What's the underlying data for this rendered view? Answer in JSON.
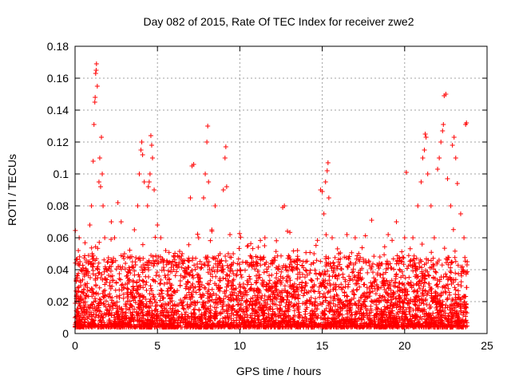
{
  "chart_data": {
    "type": "scatter",
    "title": "Day 082 of 2015, Rate Of TEC Index for receiver zwe2",
    "xlabel": "GPS time / hours",
    "ylabel": "ROTI / TECUs",
    "xlim": [
      0,
      25
    ],
    "ylim": [
      0,
      0.18
    ],
    "x_ticks": [
      0,
      5,
      10,
      15,
      20,
      25
    ],
    "x_tick_labels": [
      "0",
      "5",
      "10",
      "15",
      "20",
      "25"
    ],
    "y_ticks": [
      0,
      0.02,
      0.04,
      0.06,
      0.08,
      0.1,
      0.12,
      0.14,
      0.16,
      0.18
    ],
    "y_tick_labels": [
      "0",
      "0.02",
      "0.04",
      "0.06",
      "0.08",
      "0.1",
      "0.12",
      "0.14",
      "0.16",
      "0.18"
    ],
    "grid": true,
    "marker": "+",
    "color": "#ff0000",
    "series": [
      {
        "name": "ROTI",
        "points": [
          [
            0.0,
            0.01
          ],
          [
            0.1,
            0.02
          ],
          [
            0.15,
            0.035
          ],
          [
            0.2,
            0.052
          ],
          [
            0.25,
            0.06
          ],
          [
            0.3,
            0.045
          ],
          [
            0.35,
            0.03
          ],
          [
            0.5,
            0.015
          ],
          [
            0.7,
            0.038
          ],
          [
            0.9,
            0.068
          ],
          [
            1.0,
            0.08
          ],
          [
            1.1,
            0.108
          ],
          [
            1.15,
            0.131
          ],
          [
            1.2,
            0.145
          ],
          [
            1.22,
            0.148
          ],
          [
            1.25,
            0.163
          ],
          [
            1.28,
            0.165
          ],
          [
            1.3,
            0.169
          ],
          [
            1.35,
            0.155
          ],
          [
            1.45,
            0.095
          ],
          [
            1.5,
            0.11
          ],
          [
            1.55,
            0.092
          ],
          [
            1.6,
            0.123
          ],
          [
            1.65,
            0.1
          ],
          [
            1.7,
            0.08
          ],
          [
            1.8,
            0.06
          ],
          [
            2.0,
            0.045
          ],
          [
            2.2,
            0.07
          ],
          [
            2.4,
            0.06
          ],
          [
            2.6,
            0.082
          ],
          [
            2.8,
            0.07
          ],
          [
            3.0,
            0.05
          ],
          [
            3.3,
            0.04
          ],
          [
            3.6,
            0.065
          ],
          [
            3.8,
            0.08
          ],
          [
            3.9,
            0.1
          ],
          [
            4.0,
            0.115
          ],
          [
            4.05,
            0.12
          ],
          [
            4.1,
            0.112
          ],
          [
            4.2,
            0.095
          ],
          [
            4.4,
            0.08
          ],
          [
            4.45,
            0.092
          ],
          [
            4.5,
            0.095
          ],
          [
            4.55,
            0.1
          ],
          [
            4.6,
            0.124
          ],
          [
            4.65,
            0.118
          ],
          [
            4.7,
            0.11
          ],
          [
            4.8,
            0.09
          ],
          [
            5.0,
            0.068
          ],
          [
            5.2,
            0.06
          ],
          [
            5.5,
            0.052
          ],
          [
            6.0,
            0.048
          ],
          [
            6.5,
            0.05
          ],
          [
            7.0,
            0.085
          ],
          [
            7.1,
            0.105
          ],
          [
            7.2,
            0.106
          ],
          [
            7.5,
            0.06
          ],
          [
            7.8,
            0.085
          ],
          [
            7.9,
            0.1
          ],
          [
            8.0,
            0.12
          ],
          [
            8.05,
            0.13
          ],
          [
            8.1,
            0.095
          ],
          [
            8.3,
            0.065
          ],
          [
            8.5,
            0.08
          ],
          [
            8.8,
            0.05
          ],
          [
            9.0,
            0.09
          ],
          [
            9.1,
            0.11
          ],
          [
            9.15,
            0.117
          ],
          [
            9.2,
            0.092
          ],
          [
            9.4,
            0.062
          ],
          [
            9.6,
            0.05
          ],
          [
            10.0,
            0.04
          ],
          [
            10.5,
            0.055
          ],
          [
            11.0,
            0.045
          ],
          [
            11.5,
            0.055
          ],
          [
            12.0,
            0.045
          ],
          [
            12.6,
            0.079
          ],
          [
            12.7,
            0.08
          ],
          [
            13.0,
            0.048
          ],
          [
            13.5,
            0.052
          ],
          [
            14.0,
            0.045
          ],
          [
            14.5,
            0.05
          ],
          [
            14.9,
            0.09
          ],
          [
            15.0,
            0.089
          ],
          [
            15.1,
            0.075
          ],
          [
            15.2,
            0.095
          ],
          [
            15.3,
            0.102
          ],
          [
            15.35,
            0.107
          ],
          [
            15.4,
            0.085
          ],
          [
            15.6,
            0.06
          ],
          [
            16.0,
            0.05
          ],
          [
            16.5,
            0.062
          ],
          [
            17.0,
            0.06
          ],
          [
            17.5,
            0.045
          ],
          [
            18.0,
            0.071
          ],
          [
            18.5,
            0.048
          ],
          [
            19.0,
            0.062
          ],
          [
            19.5,
            0.07
          ],
          [
            20.0,
            0.06
          ],
          [
            20.1,
            0.101
          ],
          [
            20.5,
            0.06
          ],
          [
            20.8,
            0.08
          ],
          [
            21.0,
            0.095
          ],
          [
            21.1,
            0.11
          ],
          [
            21.2,
            0.115
          ],
          [
            21.25,
            0.125
          ],
          [
            21.3,
            0.123
          ],
          [
            21.4,
            0.1
          ],
          [
            21.6,
            0.08
          ],
          [
            21.8,
            0.06
          ],
          [
            22.0,
            0.103
          ],
          [
            22.1,
            0.11
          ],
          [
            22.2,
            0.12
          ],
          [
            22.3,
            0.127
          ],
          [
            22.35,
            0.131
          ],
          [
            22.4,
            0.149
          ],
          [
            22.5,
            0.15
          ],
          [
            22.6,
            0.097
          ],
          [
            22.8,
            0.08
          ],
          [
            22.9,
            0.118
          ],
          [
            23.0,
            0.123
          ],
          [
            23.1,
            0.11
          ],
          [
            23.2,
            0.094
          ],
          [
            23.4,
            0.075
          ],
          [
            23.6,
            0.06
          ],
          [
            23.7,
            0.131
          ],
          [
            23.75,
            0.132
          ],
          [
            23.8,
            0.045
          ]
        ]
      }
    ]
  }
}
